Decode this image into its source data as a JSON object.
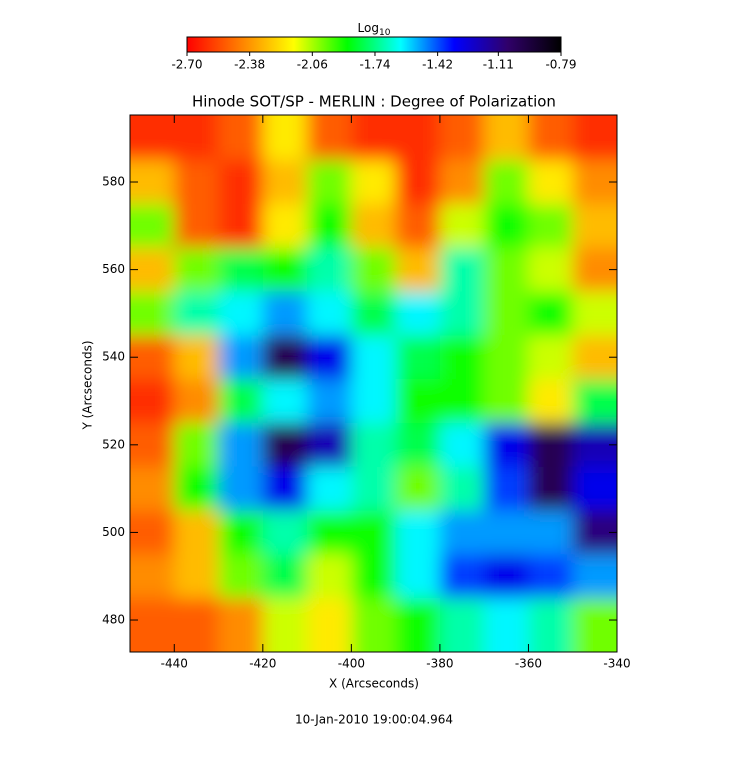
{
  "chart_data": {
    "type": "heatmap",
    "title": "Hinode SOT/SP - MERLIN : Degree of Polarization",
    "xlabel": "X (Arcseconds)",
    "ylabel": "Y (Arcseconds)",
    "footer": "10-Jan-2010 19:00:04.964",
    "colorbar_label": "Log",
    "colorbar_label_sub": "10",
    "colormap": [
      "#ff0000",
      "#ff7f00",
      "#ffff00",
      "#00ff00",
      "#00ffff",
      "#0000ff",
      "#30006a",
      "#000000"
    ],
    "clim": [
      -2.7,
      -0.79
    ],
    "cticks": [
      {
        "value": -2.7,
        "label": "-2.70"
      },
      {
        "value": -2.38,
        "label": "-2.38"
      },
      {
        "value": -2.06,
        "label": "-2.06"
      },
      {
        "value": -1.74,
        "label": "-1.74"
      },
      {
        "value": -1.42,
        "label": "-1.42"
      },
      {
        "value": -1.11,
        "label": "-1.11"
      },
      {
        "value": -0.79,
        "label": "-0.79"
      }
    ],
    "xlim": [
      -450,
      -340
    ],
    "ylim": [
      472.7,
      595.3
    ],
    "xticks": [
      -440,
      -420,
      -400,
      -380,
      -360,
      -340
    ],
    "yticks": [
      480,
      500,
      520,
      540,
      560,
      580
    ],
    "x": [
      -445,
      -435,
      -425,
      -415,
      -405,
      -395,
      -385,
      -375,
      -365,
      -355,
      -345
    ],
    "y": [
      590,
      580,
      570,
      560,
      550,
      540,
      530,
      520,
      510,
      500,
      490,
      480
    ],
    "z": [
      [
        -2.6,
        -2.6,
        -2.5,
        -2.2,
        -2.5,
        -2.6,
        -2.6,
        -2.5,
        -2.3,
        -2.5,
        -2.6
      ],
      [
        -2.3,
        -2.5,
        -2.6,
        -2.3,
        -2.0,
        -2.2,
        -2.6,
        -2.4,
        -2.0,
        -2.2,
        -2.4
      ],
      [
        -2.0,
        -2.5,
        -2.6,
        -2.2,
        -1.9,
        -2.3,
        -2.5,
        -2.1,
        -1.9,
        -2.0,
        -2.3
      ],
      [
        -2.3,
        -2.0,
        -1.8,
        -1.9,
        -1.7,
        -2.0,
        -2.3,
        -1.7,
        -2.0,
        -2.1,
        -2.4
      ],
      [
        -2.0,
        -1.7,
        -1.6,
        -1.5,
        -1.6,
        -1.8,
        -1.6,
        -1.7,
        -2.0,
        -1.9,
        -2.1
      ],
      [
        -2.5,
        -2.3,
        -1.5,
        -1.0,
        -1.3,
        -1.6,
        -1.8,
        -1.9,
        -2.0,
        -2.1,
        -2.3
      ],
      [
        -2.6,
        -2.4,
        -1.8,
        -1.6,
        -1.5,
        -1.6,
        -1.9,
        -1.9,
        -2.0,
        -2.2,
        -1.8
      ],
      [
        -2.5,
        -2.0,
        -1.5,
        -1.0,
        -1.2,
        -1.7,
        -1.8,
        -1.6,
        -1.3,
        -1.0,
        -1.2
      ],
      [
        -2.4,
        -1.9,
        -1.5,
        -1.3,
        -1.6,
        -1.7,
        -2.0,
        -1.7,
        -1.4,
        -1.0,
        -1.3
      ],
      [
        -2.5,
        -2.3,
        -1.9,
        -1.7,
        -1.9,
        -1.9,
        -1.6,
        -1.5,
        -1.5,
        -1.5,
        -1.1
      ],
      [
        -2.4,
        -2.3,
        -2.0,
        -1.8,
        -2.1,
        -1.9,
        -1.6,
        -1.4,
        -1.3,
        -1.4,
        -1.5
      ],
      [
        -2.5,
        -2.5,
        -2.4,
        -2.1,
        -2.2,
        -2.0,
        -1.9,
        -1.7,
        -1.6,
        -1.7,
        -2.0
      ]
    ]
  }
}
